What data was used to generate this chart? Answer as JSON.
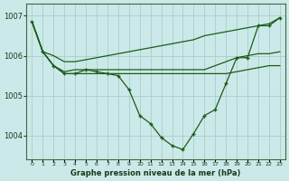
{
  "title": "Graphe pression niveau de la mer (hPa)",
  "background_color": "#cce9e9",
  "grid_color": "#b0d0d0",
  "line_color": "#1a5c1a",
  "x_labels": [
    "0",
    "1",
    "2",
    "3",
    "4",
    "5",
    "6",
    "7",
    "8",
    "9",
    "10",
    "11",
    "12",
    "13",
    "14",
    "15",
    "16",
    "17",
    "18",
    "19",
    "20",
    "21",
    "22",
    "23"
  ],
  "ylim": [
    1003.4,
    1007.3
  ],
  "yticks": [
    1004,
    1005,
    1006,
    1007
  ],
  "main_series": [
    1006.85,
    1006.1,
    1005.75,
    1005.55,
    1005.55,
    1005.65,
    1005.6,
    1005.55,
    1005.5,
    1005.15,
    1004.5,
    1004.3,
    1003.95,
    1003.75,
    1003.65,
    1004.05,
    1004.5,
    1004.65,
    1005.3,
    1005.95,
    1005.95,
    1006.75,
    1006.75,
    1006.95
  ],
  "line2": [
    1006.85,
    1006.1,
    1005.75,
    1005.55,
    1005.55,
    1005.55,
    1005.55,
    1005.55,
    1005.55,
    1005.55,
    1005.55,
    1005.55,
    1005.55,
    1005.55,
    1005.55,
    1005.55,
    1005.55,
    1005.55,
    1005.55,
    1005.6,
    1005.65,
    1005.7,
    1005.75,
    1005.75
  ],
  "line3": [
    1006.85,
    1006.1,
    1005.75,
    1005.6,
    1005.65,
    1005.65,
    1005.65,
    1005.65,
    1005.65,
    1005.65,
    1005.65,
    1005.65,
    1005.65,
    1005.65,
    1005.65,
    1005.65,
    1005.65,
    1005.75,
    1005.85,
    1005.95,
    1006.0,
    1006.05,
    1006.05,
    1006.1
  ],
  "line4": [
    1006.85,
    1006.1,
    1006.0,
    1005.85,
    1005.85,
    1005.9,
    1005.95,
    1006.0,
    1006.05,
    1006.1,
    1006.15,
    1006.2,
    1006.25,
    1006.3,
    1006.35,
    1006.4,
    1006.5,
    1006.55,
    1006.6,
    1006.65,
    1006.7,
    1006.75,
    1006.8,
    1006.95
  ]
}
